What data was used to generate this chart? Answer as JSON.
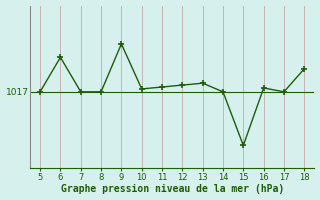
{
  "x": [
    5,
    6,
    7,
    8,
    9,
    10,
    11,
    12,
    13,
    14,
    15,
    16,
    17,
    18
  ],
  "y": [
    1017.0,
    1018.8,
    1017.0,
    1017.0,
    1019.5,
    1017.15,
    1017.25,
    1017.35,
    1017.45,
    1017.0,
    1014.2,
    1017.2,
    1017.0,
    1018.2
  ],
  "xlim": [
    4.5,
    18.5
  ],
  "ylim": [
    1013.0,
    1021.5
  ],
  "ytick_label": "1017",
  "ytick_value": 1017,
  "xlabel": "Graphe pression niveau de la mer (hPa)",
  "bg_color": "#d6f0ee",
  "line_color": "#1e5c08",
  "marker_color": "#1e5c08",
  "vline_color": "#c4aaaa",
  "left_spine_color": "#888888",
  "xticks": [
    5,
    6,
    7,
    8,
    9,
    10,
    11,
    12,
    13,
    14,
    15,
    16,
    17,
    18
  ]
}
